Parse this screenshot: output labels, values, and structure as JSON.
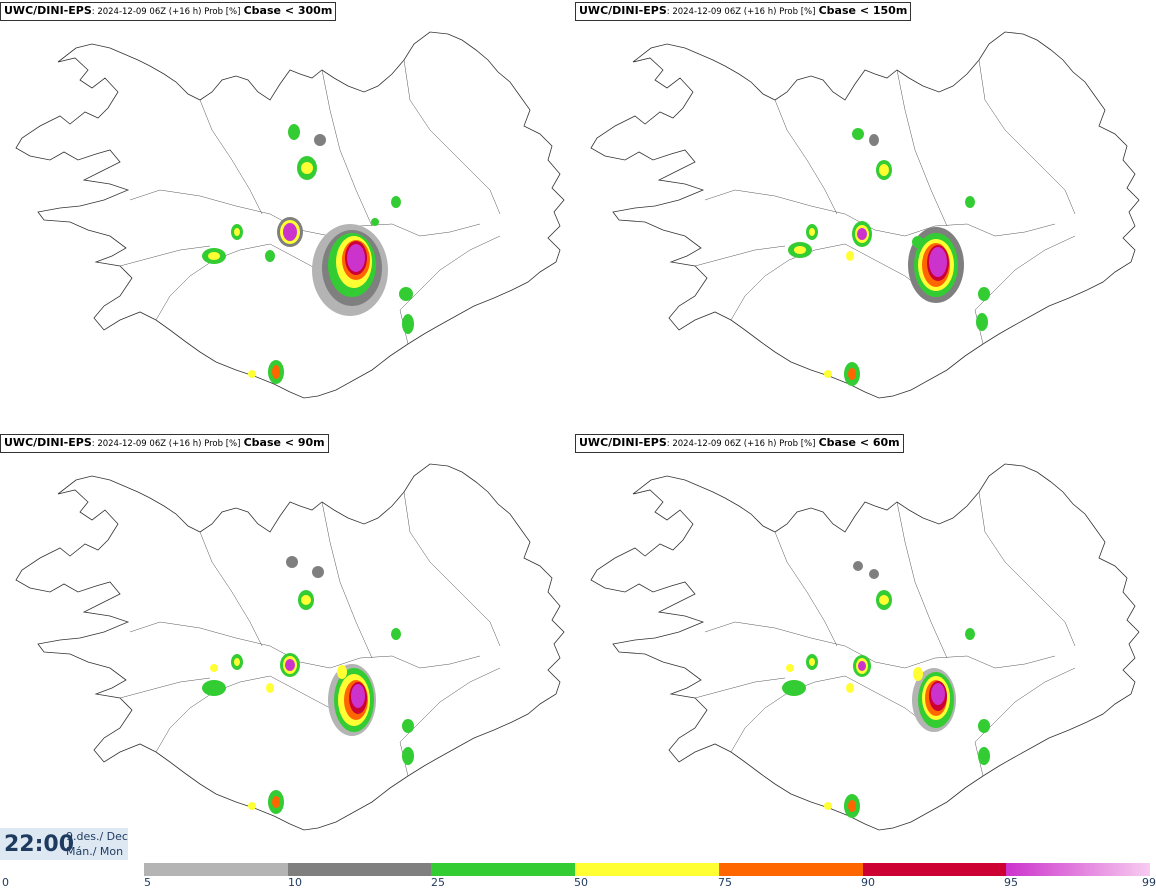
{
  "panels": [
    {
      "model": "UWC/DINI-EPS",
      "meta": ": 2024-12-09 06Z (+16 h) Prob [%]",
      "condition": "Cbase < 300m"
    },
    {
      "model": "UWC/DINI-EPS",
      "meta": ": 2024-12-09 06Z (+16 h) Prob [%]",
      "condition": "Cbase < 150m"
    },
    {
      "model": "UWC/DINI-EPS",
      "meta": ": 2024-12-09 06Z (+16 h) Prob [%]",
      "condition": "Cbase < 90m"
    },
    {
      "model": "UWC/DINI-EPS",
      "meta": ": 2024-12-09 06Z (+16 h) Prob [%]",
      "condition": "Cbase < 60m"
    }
  ],
  "clock": {
    "time": "22:00",
    "date_line": "9.des./ Dec",
    "day_line": "Mán./ Mon"
  },
  "legend": {
    "ticks": [
      "0",
      "5",
      "10",
      "25",
      "50",
      "75",
      "90",
      "95",
      "99"
    ],
    "bins": [
      {
        "from": 5,
        "to": 10,
        "color": "#b4b4b4"
      },
      {
        "from": 10,
        "to": 25,
        "color": "#7f7f7f"
      },
      {
        "from": 25,
        "to": 50,
        "color": "#33cc33"
      },
      {
        "from": 50,
        "to": 75,
        "color": "#ffff33"
      },
      {
        "from": 75,
        "to": 90,
        "color": "#ff6600"
      },
      {
        "from": 90,
        "to": 95,
        "color": "#cc0033"
      },
      {
        "from": 95,
        "to": 99,
        "color": "#cc33cc"
      }
    ],
    "gradient_end_color": "#f8ccf0"
  },
  "colors": {
    "coast": "#333333",
    "border": "#555555"
  }
}
